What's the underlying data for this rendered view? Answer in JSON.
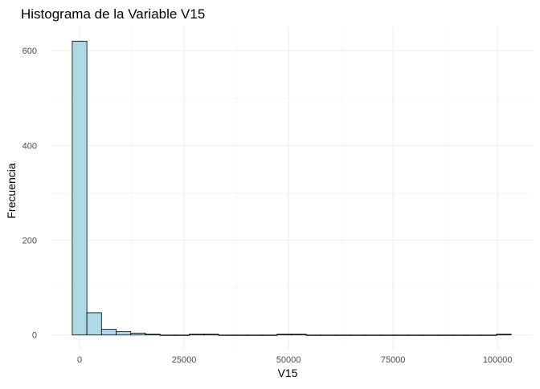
{
  "chart_data": {
    "type": "bar",
    "subtype": "histogram",
    "title": "Histograma de la Variable V15",
    "xlabel": "V15",
    "ylabel": "Frecuencia",
    "bin_width": 3500,
    "bins": [
      {
        "x_start": -1750,
        "x_end": 1750,
        "count": 620
      },
      {
        "x_start": 1750,
        "x_end": 5250,
        "count": 47
      },
      {
        "x_start": 5250,
        "x_end": 8750,
        "count": 12
      },
      {
        "x_start": 8750,
        "x_end": 12250,
        "count": 7
      },
      {
        "x_start": 12250,
        "x_end": 15750,
        "count": 4
      },
      {
        "x_start": 15750,
        "x_end": 19250,
        "count": 2
      },
      {
        "x_start": 19250,
        "x_end": 22750,
        "count": 0
      },
      {
        "x_start": 22750,
        "x_end": 26250,
        "count": 0
      },
      {
        "x_start": 26250,
        "x_end": 29750,
        "count": 2
      },
      {
        "x_start": 29750,
        "x_end": 33250,
        "count": 2
      },
      {
        "x_start": 33250,
        "x_end": 36750,
        "count": 0
      },
      {
        "x_start": 36750,
        "x_end": 40250,
        "count": 0
      },
      {
        "x_start": 40250,
        "x_end": 43750,
        "count": 0
      },
      {
        "x_start": 43750,
        "x_end": 47250,
        "count": 0
      },
      {
        "x_start": 47250,
        "x_end": 50750,
        "count": 2
      },
      {
        "x_start": 50750,
        "x_end": 54250,
        "count": 2
      },
      {
        "x_start": 54250,
        "x_end": 57750,
        "count": 0
      },
      {
        "x_start": 57750,
        "x_end": 61250,
        "count": 0
      },
      {
        "x_start": 61250,
        "x_end": 64750,
        "count": 0
      },
      {
        "x_start": 64750,
        "x_end": 68250,
        "count": 0
      },
      {
        "x_start": 68250,
        "x_end": 71750,
        "count": 0
      },
      {
        "x_start": 71750,
        "x_end": 75250,
        "count": 0
      },
      {
        "x_start": 75250,
        "x_end": 78750,
        "count": 0
      },
      {
        "x_start": 78750,
        "x_end": 82250,
        "count": 0
      },
      {
        "x_start": 82250,
        "x_end": 85750,
        "count": 0
      },
      {
        "x_start": 85750,
        "x_end": 89250,
        "count": 0
      },
      {
        "x_start": 89250,
        "x_end": 92750,
        "count": 0
      },
      {
        "x_start": 92750,
        "x_end": 96250,
        "count": 0
      },
      {
        "x_start": 96250,
        "x_end": 99750,
        "count": 0
      },
      {
        "x_start": 99750,
        "x_end": 103250,
        "count": 2
      }
    ],
    "x_ticks": [
      0,
      25000,
      50000,
      75000,
      100000
    ],
    "x_tick_labels": [
      "0",
      "25000",
      "50000",
      "75000",
      "100000"
    ],
    "y_ticks": [
      0,
      200,
      400,
      600
    ],
    "y_tick_labels": [
      "0",
      "200",
      "400",
      "600"
    ],
    "xlim": [
      -6925,
      108425
    ],
    "ylim": [
      -31,
      651
    ],
    "grid": true,
    "colors": {
      "bar_fill": "#add8e6",
      "bar_stroke": "#000000",
      "grid_major": "#ebebeb",
      "grid_minor": "#f3f3f3",
      "tick_text": "#4d4d4d",
      "background": "#ffffff"
    }
  }
}
